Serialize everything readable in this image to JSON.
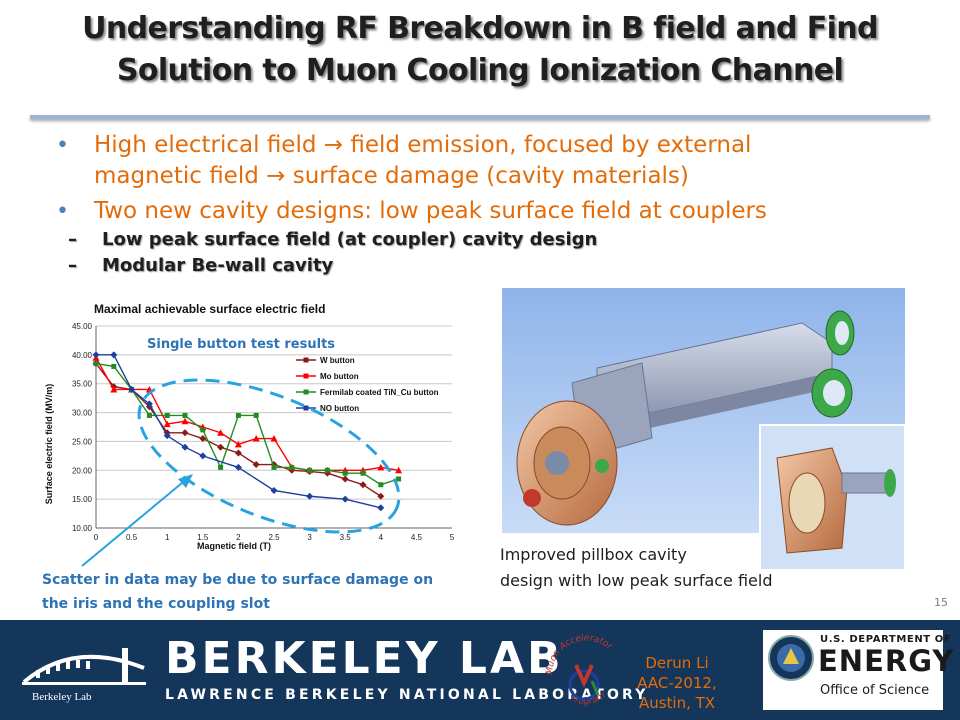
{
  "slide": {
    "title_line1": "Understanding RF Breakdown in B field and Find",
    "title_line2": "Solution to Muon Cooling Ionization Channel",
    "number": "15"
  },
  "bullets": [
    {
      "text_line1": "High electrical field → field emission, focused by external",
      "text_line2": "magnetic field → surface damage (cavity materials)"
    },
    {
      "text_line1": "Two new cavity designs: low peak surface field at couplers"
    }
  ],
  "sub_bullets": [
    {
      "dash": "–",
      "text": "Low peak surface field (at coupler) cavity design"
    },
    {
      "dash": "–",
      "text": "Modular Be-wall cavity"
    }
  ],
  "chart_data": {
    "type": "line",
    "title": "Maximal achievable surface electric field",
    "overlay_label": "Single button test results",
    "xlabel": "Magnetic field (T)",
    "ylabel": "Surface electric field (MV/m)",
    "xlim": [
      0,
      5
    ],
    "ylim": [
      10,
      45
    ],
    "x_ticks": [
      "0",
      "0.5",
      "1",
      "1.5",
      "2",
      "2.5",
      "3",
      "3.5",
      "4",
      "4.5",
      "5"
    ],
    "y_ticks": [
      "10.00",
      "15.00",
      "20.00",
      "25.00",
      "30.00",
      "35.00",
      "40.00",
      "45.00"
    ],
    "grid": true,
    "legend_position": "right",
    "series": [
      {
        "name": "W button",
        "color": "#8b1a1a",
        "x": [
          0,
          0.25,
          0.5,
          0.75,
          1.0,
          1.25,
          1.5,
          1.75,
          2.0,
          2.25,
          2.5,
          2.75,
          3.0,
          3.25,
          3.5,
          3.75,
          4.0
        ],
        "y": [
          38.5,
          34.5,
          34.0,
          31.0,
          26.5,
          26.5,
          25.5,
          24.0,
          23.0,
          21.0,
          21.0,
          20.0,
          19.8,
          19.5,
          18.5,
          17.5,
          15.5
        ]
      },
      {
        "name": "Mo button",
        "color": "#ff0000",
        "x": [
          0,
          0.25,
          0.5,
          0.75,
          1.0,
          1.25,
          1.5,
          1.75,
          2.0,
          2.25,
          2.5,
          2.75,
          3.0,
          3.25,
          3.5,
          3.75,
          4.0,
          4.25
        ],
        "y": [
          39.5,
          34.0,
          34.0,
          34.0,
          28.0,
          28.5,
          27.5,
          26.5,
          24.5,
          25.5,
          25.5,
          20.5,
          20.0,
          20.0,
          20.0,
          20.0,
          20.5,
          20.0
        ]
      },
      {
        "name": "Fermilab coated TiN_Cu button",
        "color": "#228b22",
        "x": [
          0,
          0.25,
          0.5,
          0.75,
          1.0,
          1.25,
          1.5,
          1.75,
          2.0,
          2.25,
          2.5,
          2.75,
          3.0,
          3.25,
          3.5,
          3.75,
          4.0,
          4.25
        ],
        "y": [
          38.5,
          38.0,
          34.0,
          29.5,
          29.5,
          29.5,
          27.0,
          20.5,
          29.5,
          29.5,
          20.5,
          20.5,
          20.0,
          20.0,
          19.5,
          19.5,
          17.5,
          18.5
        ]
      },
      {
        "name": "NO button",
        "color": "#1f3f9f",
        "x": [
          0,
          0.25,
          0.5,
          0.75,
          1.0,
          1.25,
          1.5,
          2.0,
          2.5,
          3.0,
          3.5,
          4.0
        ],
        "y": [
          40.0,
          40.0,
          34.0,
          31.5,
          26.0,
          24.0,
          22.5,
          20.5,
          16.5,
          15.5,
          15.0,
          13.5
        ]
      }
    ]
  },
  "annotations": {
    "scatter_note_line1": "Scatter in data may be due to surface damage on",
    "scatter_note_line2": "the iris and the coupling slot",
    "cavity_caption_line1": "Improved pillbox cavity",
    "cavity_caption_line2": "design with low peak surface field"
  },
  "footer": {
    "lab_name": "BERKELEY LAB",
    "lab_full": "LAWRENCE BERKELEY NATIONAL LABORATORY",
    "presenter": "Derun Li",
    "venue": "AAC-2012, Austin, TX",
    "doe_top": "U.S. DEPARTMENT OF",
    "doe_main": "ENERGY",
    "doe_office": "Office of Science",
    "logo_text_small": "Berkeley Lab",
    "map_logo_top": "Muon Accelerator",
    "map_logo_bottom": "Program"
  },
  "colors": {
    "title_text": "#1f1f1f",
    "bullet_text": "#e36c0a",
    "bullet_marker": "#4f81bd",
    "note_text": "#2e74b5",
    "footer_bg": "#13365a",
    "ellipse": "#29a3e0"
  }
}
